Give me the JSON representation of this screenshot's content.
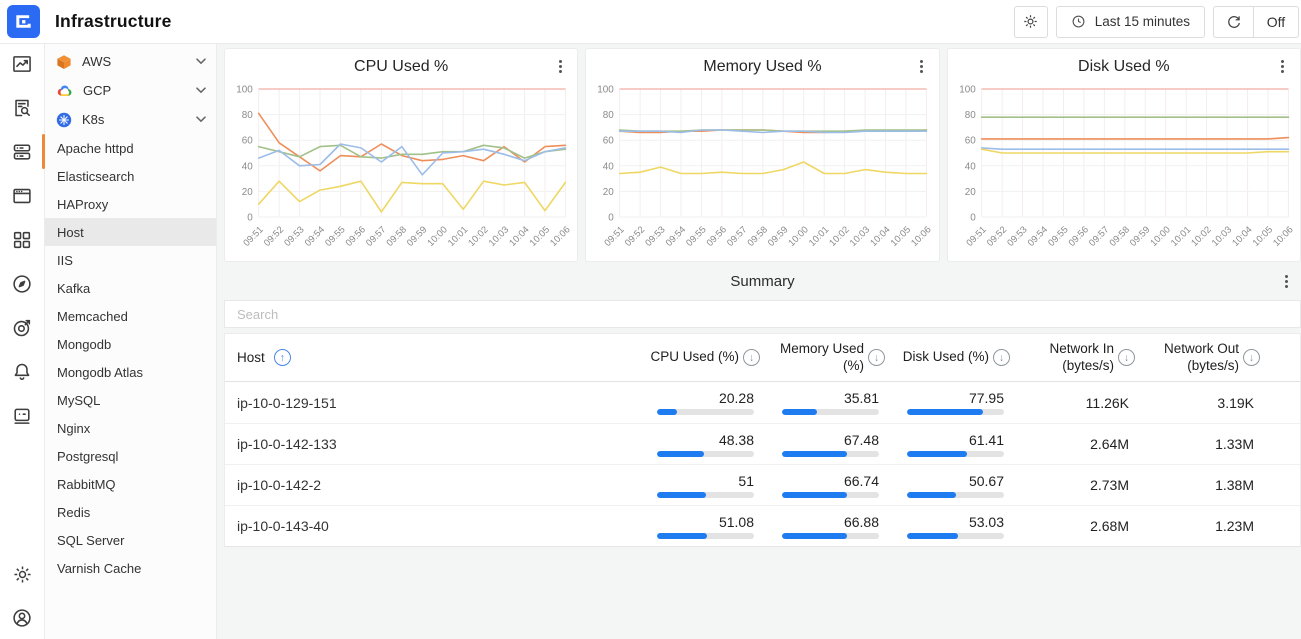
{
  "header": {
    "title": "Infrastructure",
    "time_range_label": "Last 15 minutes",
    "auto_refresh_label": "Off"
  },
  "rail": {
    "active": "infrastructure",
    "icons": [
      "metrics-chart-icon",
      "logs-search-icon",
      "infrastructure-servers-icon",
      "dashboards-window-icon",
      "services-grid-icon",
      "explore-compass-icon",
      "goal-target-icon",
      "alerts-bell-icon",
      "bot-icon",
      "settings-gear-icon",
      "account-icon"
    ]
  },
  "sidebar": {
    "groups": [
      {
        "label": "AWS",
        "icon": "aws-cube-icon"
      },
      {
        "label": "GCP",
        "icon": "gcp-cloud-icon"
      },
      {
        "label": "K8s",
        "icon": "kubernetes-icon"
      }
    ],
    "items": [
      "Apache httpd",
      "Elasticsearch",
      "HAProxy",
      "Host",
      "IIS",
      "Kafka",
      "Memcached",
      "Mongodb",
      "Mongodb Atlas",
      "MySQL",
      "Nginx",
      "Postgresql",
      "RabbitMQ",
      "Redis",
      "SQL Server",
      "Varnish Cache"
    ],
    "selected": "Host"
  },
  "summary": {
    "title": "Summary",
    "search_placeholder": "Search",
    "columns": [
      {
        "label": "Host",
        "sort": "asc"
      },
      {
        "label": "CPU Used (%)",
        "sort": "desc"
      },
      {
        "label": "Memory Used (%)",
        "sort": "desc"
      },
      {
        "label": "Disk Used (%)",
        "sort": "desc"
      },
      {
        "label": "Network In (bytes/s)",
        "sort": "desc"
      },
      {
        "label": "Network Out (bytes/s)",
        "sort": "desc"
      }
    ],
    "rows": [
      {
        "host": "ip-10-0-129-151",
        "cpu": "20.28",
        "memory": "35.81",
        "disk": "77.95",
        "network_in": "11.26K",
        "network_out": "3.19K"
      },
      {
        "host": "ip-10-0-142-133",
        "cpu": "48.38",
        "memory": "67.48",
        "disk": "61.41",
        "network_in": "2.64M",
        "network_out": "1.33M"
      },
      {
        "host": "ip-10-0-142-2",
        "cpu": "51",
        "memory": "66.74",
        "disk": "50.67",
        "network_in": "2.73M",
        "network_out": "1.38M"
      },
      {
        "host": "ip-10-0-143-40",
        "cpu": "51.08",
        "memory": "66.88",
        "disk": "53.03",
        "network_in": "2.68M",
        "network_out": "1.23M"
      }
    ]
  },
  "chart_data": [
    {
      "type": "line",
      "title": "CPU Used %",
      "x": [
        "09:51",
        "09:52",
        "09:53",
        "09:54",
        "09:55",
        "09:56",
        "09:57",
        "09:58",
        "09:59",
        "10:00",
        "10:01",
        "10:02",
        "10:03",
        "10:04",
        "10:05",
        "10:06"
      ],
      "ylim": [
        0,
        100
      ],
      "yticks": [
        0,
        20,
        40,
        60,
        80,
        100
      ],
      "grid": true,
      "legend": false,
      "threshold": {
        "value": 100,
        "color": "#f0998e"
      },
      "series": [
        {
          "name": "series-1",
          "color": "#ee8e5a",
          "values": [
            81,
            58,
            47,
            36,
            48,
            47,
            57,
            48,
            44,
            45,
            48,
            44,
            55,
            43,
            55,
            56
          ]
        },
        {
          "name": "series-2",
          "color": "#a2c189",
          "values": [
            55,
            51,
            47,
            55,
            56,
            47,
            46,
            49,
            49,
            51,
            51,
            56,
            54,
            46,
            51,
            53
          ]
        },
        {
          "name": "series-3",
          "color": "#9cbde8",
          "values": [
            46,
            52,
            40,
            41,
            57,
            54,
            43,
            55,
            33,
            50,
            51,
            53,
            49,
            44,
            51,
            54
          ]
        },
        {
          "name": "series-4",
          "color": "#efd763",
          "values": [
            10,
            28,
            12,
            21,
            24,
            28,
            4,
            27,
            26,
            26,
            6,
            28,
            25,
            27,
            5,
            27
          ]
        }
      ]
    },
    {
      "type": "line",
      "title": "Memory Used %",
      "x": [
        "09:51",
        "09:52",
        "09:53",
        "09:54",
        "09:55",
        "09:56",
        "09:57",
        "09:58",
        "09:59",
        "10:00",
        "10:01",
        "10:02",
        "10:03",
        "10:04",
        "10:05",
        "10:06"
      ],
      "ylim": [
        0,
        100
      ],
      "yticks": [
        0,
        20,
        40,
        60,
        80,
        100
      ],
      "grid": true,
      "legend": false,
      "threshold": {
        "value": 100,
        "color": "#f0998e"
      },
      "series": [
        {
          "name": "series-1",
          "color": "#ee8e5a",
          "values": [
            67,
            66,
            66,
            67,
            67,
            68,
            68,
            68,
            67,
            66,
            66,
            67,
            67,
            67,
            67,
            68
          ]
        },
        {
          "name": "series-2",
          "color": "#a2c189",
          "values": [
            68,
            67,
            67,
            67,
            68,
            68,
            68,
            68,
            67,
            67,
            67,
            67,
            68,
            68,
            68,
            68
          ]
        },
        {
          "name": "series-3",
          "color": "#9cbde8",
          "values": [
            67,
            67,
            67,
            66,
            68,
            68,
            67,
            66,
            67,
            67,
            66,
            66,
            67,
            67,
            67,
            67
          ]
        },
        {
          "name": "series-4",
          "color": "#efd763",
          "values": [
            34,
            35,
            39,
            34,
            34,
            35,
            34,
            34,
            37,
            43,
            34,
            34,
            37,
            35,
            34,
            34
          ]
        }
      ]
    },
    {
      "type": "line",
      "title": "Disk Used %",
      "x": [
        "09:51",
        "09:52",
        "09:53",
        "09:54",
        "09:55",
        "09:56",
        "09:57",
        "09:58",
        "09:59",
        "10:00",
        "10:01",
        "10:02",
        "10:03",
        "10:04",
        "10:05",
        "10:06"
      ],
      "ylim": [
        0,
        100
      ],
      "yticks": [
        0,
        20,
        40,
        60,
        80,
        100
      ],
      "grid": true,
      "legend": false,
      "threshold": {
        "value": 100,
        "color": "#f0998e"
      },
      "series": [
        {
          "name": "series-1",
          "color": "#ee8e5a",
          "values": [
            61,
            61,
            61,
            61,
            61,
            61,
            61,
            61,
            61,
            61,
            61,
            61,
            61,
            61,
            61,
            62
          ]
        },
        {
          "name": "series-2",
          "color": "#a2c189",
          "values": [
            78,
            78,
            78,
            78,
            78,
            78,
            78,
            78,
            78,
            78,
            78,
            78,
            78,
            78,
            78,
            78
          ]
        },
        {
          "name": "series-3",
          "color": "#9cbde8",
          "values": [
            54,
            53,
            53,
            53,
            53,
            53,
            53,
            53,
            53,
            53,
            53,
            53,
            53,
            53,
            53,
            53
          ]
        },
        {
          "name": "series-4",
          "color": "#efd763",
          "values": [
            53,
            50,
            50,
            50,
            50,
            50,
            50,
            50,
            50,
            50,
            50,
            50,
            50,
            50,
            51,
            51
          ]
        }
      ]
    }
  ],
  "colors": {
    "accent_blue": "#1e7bf0",
    "active_indicator_orange": "#f0883a",
    "bar_track_gray": "#e3e3e3",
    "threshold_red": "#f0998e",
    "logo_blue": "#2b6bf3"
  }
}
